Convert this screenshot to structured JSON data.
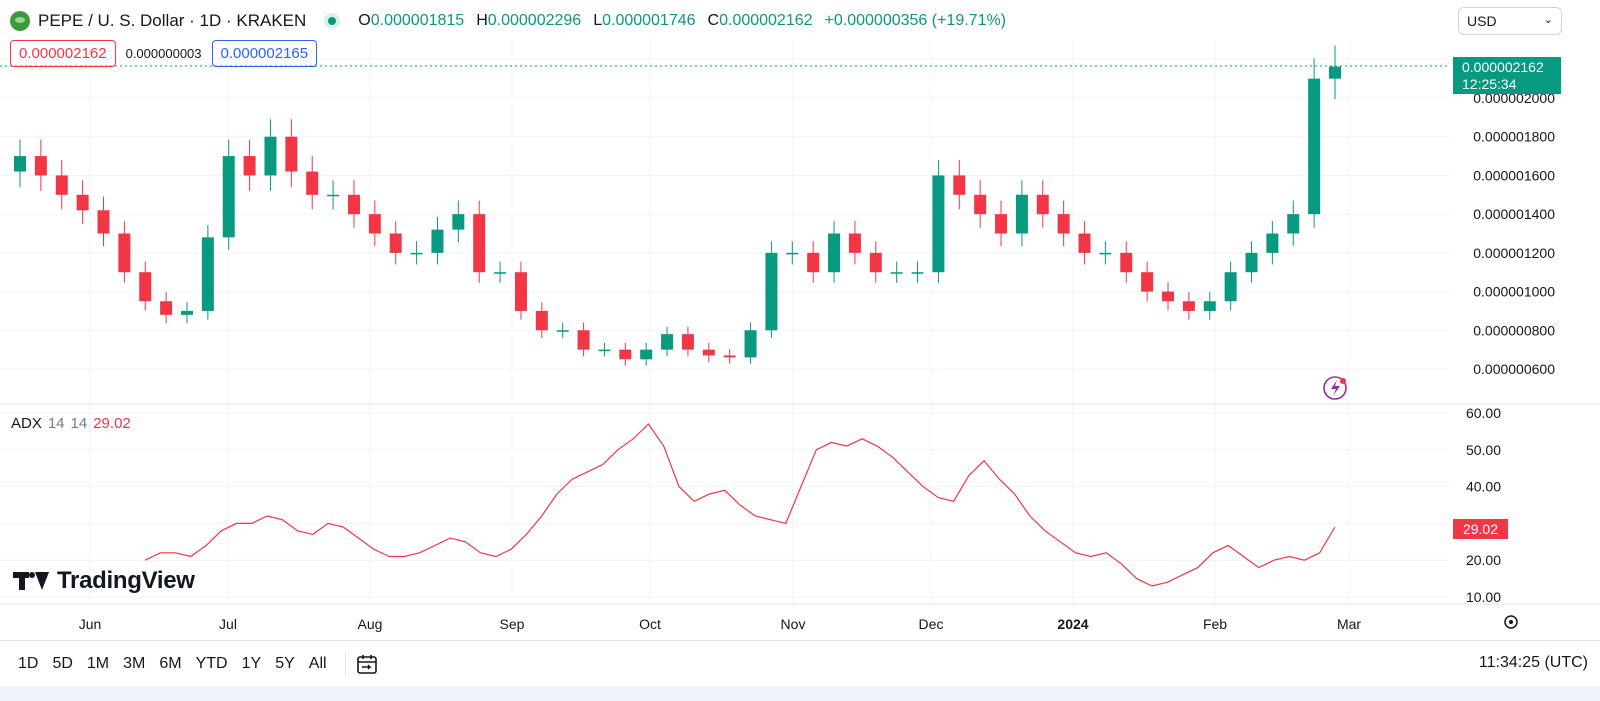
{
  "header": {
    "symbol": "PEPE / U. S. Dollar · 1D · KRAKEN",
    "ohlc": [
      {
        "k": "O",
        "v": "0.000001815"
      },
      {
        "k": "H",
        "v": "0.000002296"
      },
      {
        "k": "L",
        "v": "0.000001746"
      },
      {
        "k": "C",
        "v": "0.000002162"
      }
    ],
    "change": "+0.000000356 (+19.71%)"
  },
  "quote": {
    "sell": "0.000002162",
    "spread": "0.000000003",
    "buy": "0.000002165"
  },
  "currency": {
    "selected": "USD"
  },
  "last_price": {
    "value": "0.000002162",
    "countdown": "12:25:34"
  },
  "colors": {
    "up": "#089981",
    "down": "#f23645",
    "adx": "#f23645",
    "grid": "#f0f3fa",
    "accent": "#2962ff"
  },
  "price_axis": {
    "ticks": [
      "0.000002000",
      "0.000001800",
      "0.000001600",
      "0.000001400",
      "0.000001200",
      "0.000001000",
      "0.000000800",
      "0.000000600"
    ]
  },
  "adx_axis": {
    "ticks": [
      "60.00",
      "50.00",
      "40.00",
      "30.00",
      "20.00",
      "10.00"
    ]
  },
  "x_axis": {
    "labels": [
      "Jun",
      "Jul",
      "Aug",
      "Sep",
      "Oct",
      "Nov",
      "Dec",
      "2024",
      "Feb",
      "Mar"
    ]
  },
  "indicator": {
    "name": "ADX",
    "p1": "14",
    "p2": "14",
    "value": "29.02"
  },
  "brand": "TradingView",
  "ranges": [
    "1D",
    "5D",
    "1M",
    "3M",
    "6M",
    "YTD",
    "1Y",
    "5Y",
    "All"
  ],
  "clock": "11:34:25 (UTC)",
  "icons": {
    "settings": "gear-icon",
    "calendar": "calendar-goto-icon",
    "lightning": "lightning-icon"
  },
  "chart_data": [
    {
      "type": "candlestick",
      "symbol": "PEPE/USD",
      "interval": "1D",
      "ylim": [
        5.5e-07,
        2.3e-06
      ],
      "x_labels": [
        "Jun",
        "Jul",
        "Aug",
        "Sep",
        "Oct",
        "Nov",
        "Dec",
        "2024",
        "Feb",
        "Mar"
      ],
      "close": [
        1.7e-06,
        1.6e-06,
        1.5e-06,
        1.42e-06,
        1.3e-06,
        1.1e-06,
        9.5e-07,
        8.8e-07,
        9e-07,
        1.28e-06,
        1.7e-06,
        1.6e-06,
        1.8e-06,
        1.62e-06,
        1.5e-06,
        1.5e-06,
        1.4e-06,
        1.3e-06,
        1.2e-06,
        1.2e-06,
        1.32e-06,
        1.4e-06,
        1.1e-06,
        1.1e-06,
        9e-07,
        8e-07,
        8e-07,
        7e-07,
        7e-07,
        6.5e-07,
        7e-07,
        7.8e-07,
        7e-07,
        6.7e-07,
        6.6e-07,
        8e-07,
        1.2e-06,
        1.2e-06,
        1.1e-06,
        1.3e-06,
        1.2e-06,
        1.1e-06,
        1.1e-06,
        1.1e-06,
        1.6e-06,
        1.5e-06,
        1.4e-06,
        1.3e-06,
        1.5e-06,
        1.4e-06,
        1.3e-06,
        1.2e-06,
        1.2e-06,
        1.1e-06,
        1e-06,
        9.5e-07,
        9e-07,
        9.5e-07,
        1.1e-06,
        1.2e-06,
        1.3e-06,
        1.4e-06,
        2.1e-06,
        2.162e-06
      ]
    },
    {
      "type": "line",
      "name": "ADX",
      "ylim": [
        5,
        62
      ],
      "values": [
        20,
        22,
        22,
        21,
        24,
        28,
        30,
        30,
        32,
        31,
        28,
        27,
        30,
        29,
        26,
        23,
        21,
        21,
        22,
        24,
        26,
        25,
        22,
        21,
        23,
        27,
        32,
        38,
        42,
        44,
        46,
        50,
        53,
        57,
        51,
        40,
        36,
        38,
        39,
        35,
        32,
        31,
        30,
        40,
        50,
        52,
        51,
        53,
        51,
        48,
        44,
        40,
        37,
        36,
        43,
        47,
        42,
        38,
        32,
        28,
        25,
        22,
        21,
        22,
        19,
        15,
        13,
        14,
        16,
        18,
        22,
        24,
        21,
        18,
        20,
        21,
        20,
        22,
        29.02
      ]
    }
  ]
}
